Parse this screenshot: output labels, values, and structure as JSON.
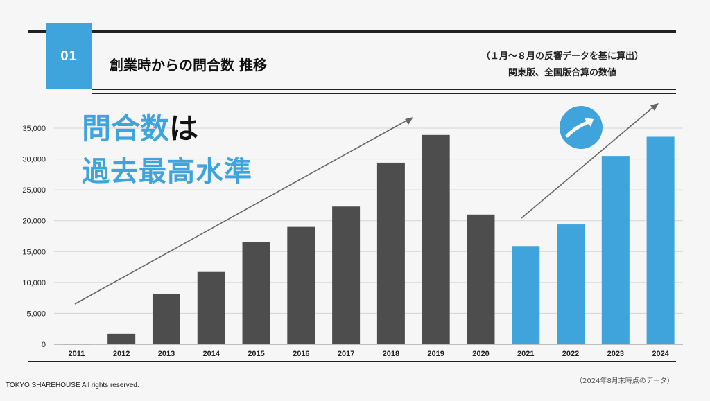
{
  "slide": {
    "badge": "01",
    "title": "創業時からの問合数 推移",
    "note_line1": "（１月〜８月の反響データを基に算出）",
    "note_line2": "関東版、全国版合算の数値",
    "headline_part1": "問合数",
    "headline_part2": "は",
    "headline_line2": "過去最高水準",
    "footer_left": "TOKYO SHAREHOUSE  All rights reserved.",
    "footer_right": "（2024年8月末時点のデータ）",
    "icon": "trend-up-arrow-icon"
  },
  "colors": {
    "dark_bar": "#4d4d4d",
    "blue_bar": "#3fa3dc",
    "accent": "#3fa3dc"
  },
  "chart_data": {
    "type": "bar",
    "categories": [
      "2011",
      "2012",
      "2013",
      "2014",
      "2015",
      "2016",
      "2017",
      "2018",
      "2019",
      "2020",
      "2021",
      "2022",
      "2023",
      "2024"
    ],
    "values": [
      100,
      1700,
      8100,
      11700,
      16600,
      19000,
      22300,
      29400,
      33900,
      21000,
      15900,
      19400,
      30500,
      33600
    ],
    "highlight_from_index": 10,
    "ylim": [
      0,
      35000
    ],
    "yticks": [
      "0",
      "5,000",
      "10,000",
      "15,000",
      "20,000",
      "25,000",
      "30,000",
      "35,000"
    ],
    "ytick_values": [
      0,
      5000,
      10000,
      15000,
      20000,
      25000,
      30000,
      35000
    ],
    "grid": true
  }
}
